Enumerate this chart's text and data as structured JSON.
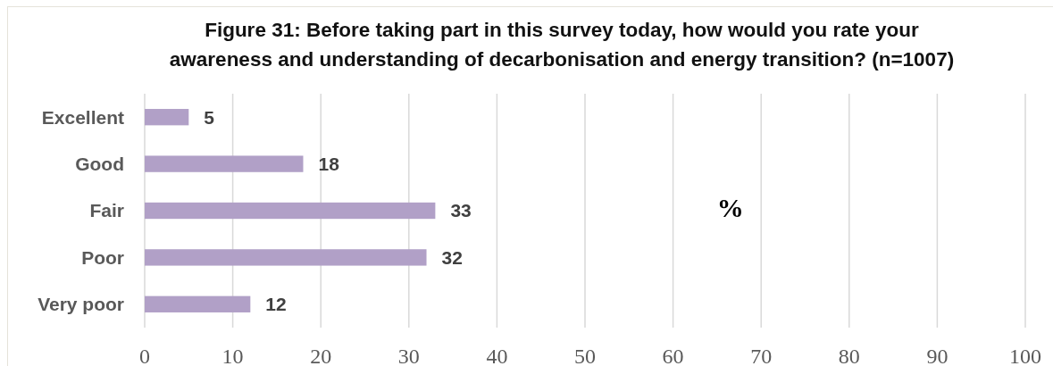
{
  "chart_data": {
    "type": "bar",
    "orientation": "horizontal",
    "title": "Figure 31: Before taking part in this survey today, how would you rate your\nawareness and understanding of decarbonisation and energy transition? (n=1007)",
    "xlabel": "%",
    "categories": [
      "Excellent",
      "Good",
      "Fair",
      "Poor",
      "Very poor"
    ],
    "values": [
      5,
      18,
      33,
      32,
      12
    ],
    "color": "#b1a0c7",
    "xlim": [
      0,
      100
    ],
    "xticks": [
      0,
      10,
      20,
      30,
      40,
      50,
      60,
      70,
      80,
      90,
      100
    ],
    "grid": "x",
    "data_labels": true
  }
}
